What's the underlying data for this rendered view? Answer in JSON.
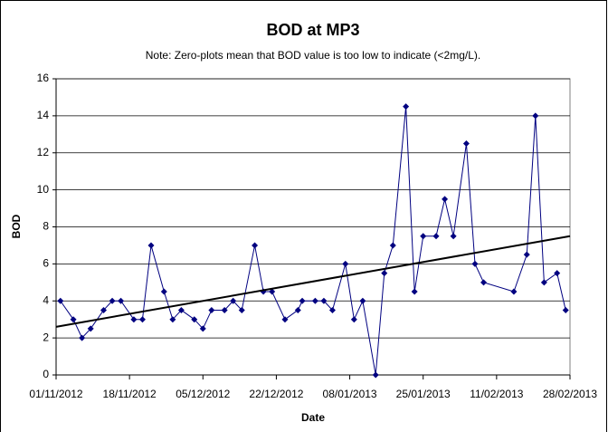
{
  "chart_data": {
    "type": "line",
    "title": "BOD at MP3",
    "subtitle": "Note: Zero-plots mean that BOD value is too low to indicate (<2mg/L).",
    "x_label": "Date",
    "y_label": "BOD",
    "series": [
      {
        "color": "#000080",
        "x": [
          "2012-11-02",
          "2012-11-05",
          "2012-11-07",
          "2012-11-09",
          "2012-11-12",
          "2012-11-14",
          "2012-11-16",
          "2012-11-19",
          "2012-11-21",
          "2012-11-23",
          "2012-11-26",
          "2012-11-28",
          "2012-11-30",
          "2012-12-03",
          "2012-12-05",
          "2012-12-07",
          "2012-12-10",
          "2012-12-12",
          "2012-12-14",
          "2012-12-17",
          "2012-12-19",
          "2012-12-21",
          "2012-12-24",
          "2012-12-27",
          "2012-12-28",
          "2012-12-31",
          "2013-01-02",
          "2013-01-04",
          "2013-01-07",
          "2013-01-09",
          "2013-01-11",
          "2013-01-14",
          "2013-01-16",
          "2013-01-18",
          "2013-01-21",
          "2013-01-23",
          "2013-01-25",
          "2013-01-28",
          "2013-01-30",
          "2013-02-01",
          "2013-02-04",
          "2013-02-06",
          "2013-02-08",
          "2013-02-15",
          "2013-02-18",
          "2013-02-20",
          "2013-02-22",
          "2013-02-25",
          "2013-02-27"
        ],
        "values": [
          4,
          3,
          2,
          2.5,
          3.5,
          4,
          4,
          3,
          3,
          7,
          4.5,
          3,
          3.5,
          3,
          2.5,
          3.5,
          3.5,
          4,
          3.5,
          7,
          4.5,
          4.5,
          3,
          3.5,
          4,
          4,
          4,
          3.5,
          6,
          3,
          4,
          0,
          5.5,
          7,
          14.5,
          4.5,
          7.5,
          7.5,
          9.5,
          7.5,
          12.5,
          6,
          5,
          4.5,
          6.5,
          14,
          5,
          5.5,
          3.5
        ]
      }
    ],
    "trendline": {
      "color": "#000000",
      "x": [
        "2012-11-01",
        "2013-02-28"
      ],
      "values": [
        2.6,
        7.5
      ]
    },
    "xlim": [
      "2012-11-01",
      "2013-02-28"
    ],
    "xticks": [
      {
        "value": "2012-11-01",
        "label": "01/11/2012"
      },
      {
        "value": "2012-11-18",
        "label": "18/11/2012"
      },
      {
        "value": "2012-12-05",
        "label": "05/12/2012"
      },
      {
        "value": "2012-12-22",
        "label": "22/12/2012"
      },
      {
        "value": "2013-01-08",
        "label": "08/01/2013"
      },
      {
        "value": "2013-01-25",
        "label": "25/01/2013"
      },
      {
        "value": "2013-02-11",
        "label": "11/02/2013"
      },
      {
        "value": "2013-02-28",
        "label": "28/02/2013"
      }
    ],
    "ylim": [
      0,
      16
    ],
    "yticks": [
      0,
      2,
      4,
      6,
      8,
      10,
      12,
      14,
      16
    ],
    "grid": true
  }
}
